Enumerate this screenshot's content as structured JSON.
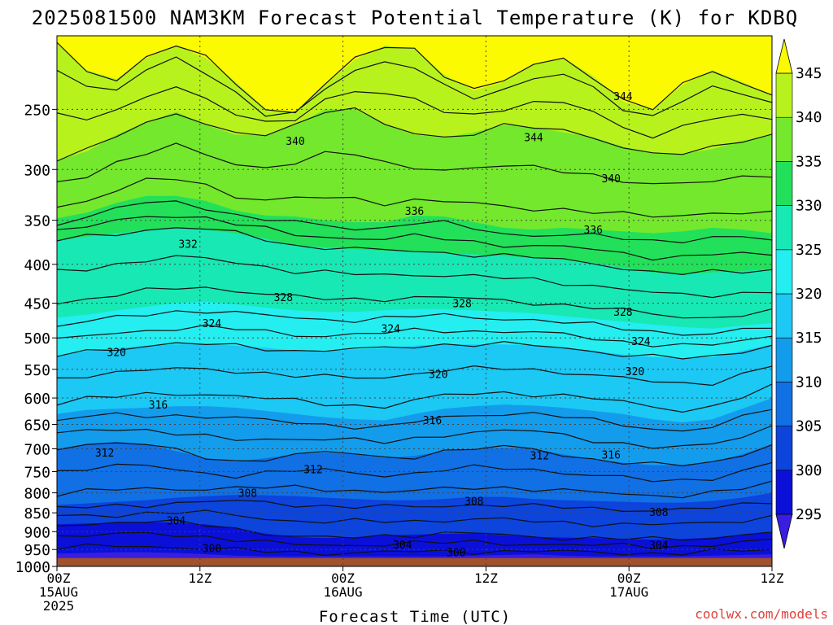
{
  "title": "2025081500 NAM3KM Forecast Potential Temperature (K) for KDBQ",
  "xlabel": "Forecast Time (UTC)",
  "watermark": "coolwx.com/models",
  "colors": {
    "ground": "#a0522d",
    "watermark": "#e0403a",
    "contour": "#111111",
    "grid": "#444444"
  },
  "chart_data": {
    "type": "heatmap",
    "title": "2025081500 NAM3KM Forecast Potential Temperature (K) for KDBQ",
    "xlabel": "Forecast Time (UTC)",
    "ylabel": "",
    "x_ticks": [
      {
        "hour": 0,
        "lines": [
          "00Z",
          "15AUG",
          "2025"
        ]
      },
      {
        "hour": 12,
        "lines": [
          "12Z"
        ]
      },
      {
        "hour": 24,
        "lines": [
          "00Z",
          "16AUG"
        ]
      },
      {
        "hour": 36,
        "lines": [
          "12Z"
        ]
      },
      {
        "hour": 48,
        "lines": [
          "00Z",
          "17AUG"
        ]
      },
      {
        "hour": 60,
        "lines": [
          "12Z"
        ]
      }
    ],
    "xlim": [
      0,
      60
    ],
    "y_ticks": [
      250,
      300,
      350,
      400,
      450,
      500,
      550,
      600,
      650,
      700,
      750,
      800,
      850,
      900,
      950,
      1000
    ],
    "ylim": [
      1000,
      200
    ],
    "grid": true,
    "colorbar": {
      "ticks": [
        295,
        300,
        305,
        310,
        315,
        320,
        325,
        330,
        335,
        340,
        345
      ],
      "bands": [
        {
          "from": 290,
          "to": 295,
          "color": "#3a1ee0"
        },
        {
          "from": 295,
          "to": 300,
          "color": "#0a10d8"
        },
        {
          "from": 300,
          "to": 305,
          "color": "#0c44dc"
        },
        {
          "from": 305,
          "to": 310,
          "color": "#1070e4"
        },
        {
          "from": 310,
          "to": 315,
          "color": "#149cec"
        },
        {
          "from": 315,
          "to": 320,
          "color": "#1cc8f4"
        },
        {
          "from": 320,
          "to": 325,
          "color": "#24eef0"
        },
        {
          "from": 325,
          "to": 330,
          "color": "#18e8b4"
        },
        {
          "from": 330,
          "to": 335,
          "color": "#22e05a"
        },
        {
          "from": 335,
          "to": 340,
          "color": "#74e82c"
        },
        {
          "from": 340,
          "to": 345,
          "color": "#b8f21c"
        },
        {
          "from": 345,
          "to": 350,
          "color": "#fcfa00"
        }
      ]
    },
    "contour_interval": 2,
    "band_interfaces": [
      {
        "value": 345,
        "levels": [
          205,
          222,
          228,
          214,
          206,
          214,
          230,
          250,
          252,
          232,
          215,
          206,
          208,
          225,
          236,
          230,
          218,
          214,
          226,
          244,
          250,
          232,
          222,
          230,
          240
        ]
      },
      {
        "value": 340,
        "levels": [
          292,
          284,
          270,
          260,
          252,
          262,
          270,
          270,
          262,
          250,
          250,
          262,
          270,
          272,
          268,
          262,
          264,
          268,
          272,
          280,
          285,
          286,
          282,
          275,
          270
        ]
      },
      {
        "value": 335,
        "levels": [
          348,
          342,
          332,
          325,
          325,
          330,
          340,
          345,
          346,
          350,
          352,
          352,
          345,
          346,
          352,
          358,
          360,
          358,
          360,
          362,
          364,
          362,
          358,
          360,
          364
        ]
      },
      {
        "value": 330,
        "levels": [
          372,
          368,
          364,
          360,
          358,
          360,
          364,
          370,
          378,
          380,
          382,
          384,
          384,
          386,
          388,
          390,
          392,
          395,
          398,
          404,
          410,
          412,
          410,
          408,
          406
        ]
      },
      {
        "value": 325,
        "levels": [
          470,
          466,
          460,
          455,
          450,
          448,
          452,
          456,
          460,
          462,
          462,
          460,
          458,
          458,
          460,
          462,
          464,
          468,
          472,
          476,
          480,
          484,
          486,
          482,
          478
        ]
      },
      {
        "value": 320,
        "levels": [
          528,
          520,
          516,
          512,
          510,
          510,
          512,
          515,
          520,
          520,
          518,
          516,
          512,
          510,
          510,
          510,
          512,
          515,
          520,
          526,
          530,
          532,
          530,
          520,
          510
        ]
      },
      {
        "value": 315,
        "levels": [
          630,
          622,
          620,
          618,
          615,
          615,
          618,
          624,
          630,
          636,
          640,
          642,
          630,
          620,
          615,
          612,
          614,
          618,
          624,
          630,
          640,
          646,
          640,
          620,
          600
        ]
      },
      {
        "value": 310,
        "levels": [
          700,
          690,
          685,
          690,
          705,
          720,
          728,
          720,
          712,
          708,
          712,
          720,
          715,
          705,
          700,
          698,
          700,
          712,
          722,
          730,
          736,
          735,
          728,
          712,
          690
        ]
      },
      {
        "value": 305,
        "levels": [
          830,
          826,
          822,
          818,
          812,
          808,
          805,
          806,
          808,
          812,
          815,
          818,
          818,
          815,
          810,
          810,
          815,
          818,
          820,
          822,
          824,
          824,
          820,
          812,
          800
        ]
      },
      {
        "value": 300,
        "levels": [
          880,
          878,
          876,
          874,
          876,
          880,
          890,
          905,
          915,
          918,
          915,
          910,
          908,
          906,
          905,
          910,
          914,
          916,
          918,
          920,
          922,
          920,
          916,
          908,
          900
        ]
      },
      {
        "value": 295,
        "levels": [
          962,
          960,
          958,
          958,
          960,
          964,
          968,
          970,
          970,
          970,
          970,
          970,
          970,
          970,
          968,
          966,
          964,
          968,
          970,
          970,
          970,
          970,
          968,
          966,
          964
        ]
      }
    ],
    "contour_labels": [
      {
        "text": "344",
        "hour": 47.5,
        "level": 240
      },
      {
        "text": "344",
        "hour": 40,
        "level": 272
      },
      {
        "text": "340",
        "hour": 20,
        "level": 275
      },
      {
        "text": "340",
        "hour": 46.5,
        "level": 308
      },
      {
        "text": "336",
        "hour": 30,
        "level": 340
      },
      {
        "text": "336",
        "hour": 45,
        "level": 360
      },
      {
        "text": "332",
        "hour": 11,
        "level": 376
      },
      {
        "text": "328",
        "hour": 19,
        "level": 442
      },
      {
        "text": "328",
        "hour": 34,
        "level": 450
      },
      {
        "text": "328",
        "hour": 47.5,
        "level": 462
      },
      {
        "text": "324",
        "hour": 13,
        "level": 478
      },
      {
        "text": "324",
        "hour": 28,
        "level": 486
      },
      {
        "text": "324",
        "hour": 49,
        "level": 505
      },
      {
        "text": "320",
        "hour": 5,
        "level": 522
      },
      {
        "text": "320",
        "hour": 32,
        "level": 558
      },
      {
        "text": "320",
        "hour": 48.5,
        "level": 553
      },
      {
        "text": "316",
        "hour": 8.5,
        "level": 612
      },
      {
        "text": "316",
        "hour": 31.5,
        "level": 641
      },
      {
        "text": "316",
        "hour": 46.5,
        "level": 712
      },
      {
        "text": "312",
        "hour": 4,
        "level": 708
      },
      {
        "text": "312",
        "hour": 21.5,
        "level": 745
      },
      {
        "text": "312",
        "hour": 40.5,
        "level": 714
      },
      {
        "text": "308",
        "hour": 16,
        "level": 800
      },
      {
        "text": "308",
        "hour": 35,
        "level": 820
      },
      {
        "text": "308",
        "hour": 50.5,
        "level": 848
      },
      {
        "text": "304",
        "hour": 10,
        "level": 870
      },
      {
        "text": "304",
        "hour": 29,
        "level": 936
      },
      {
        "text": "304",
        "hour": 50.5,
        "level": 937
      },
      {
        "text": "300",
        "hour": 13,
        "level": 946
      },
      {
        "text": "300",
        "hour": 33.5,
        "level": 958
      }
    ],
    "surface_pressure": 975
  }
}
